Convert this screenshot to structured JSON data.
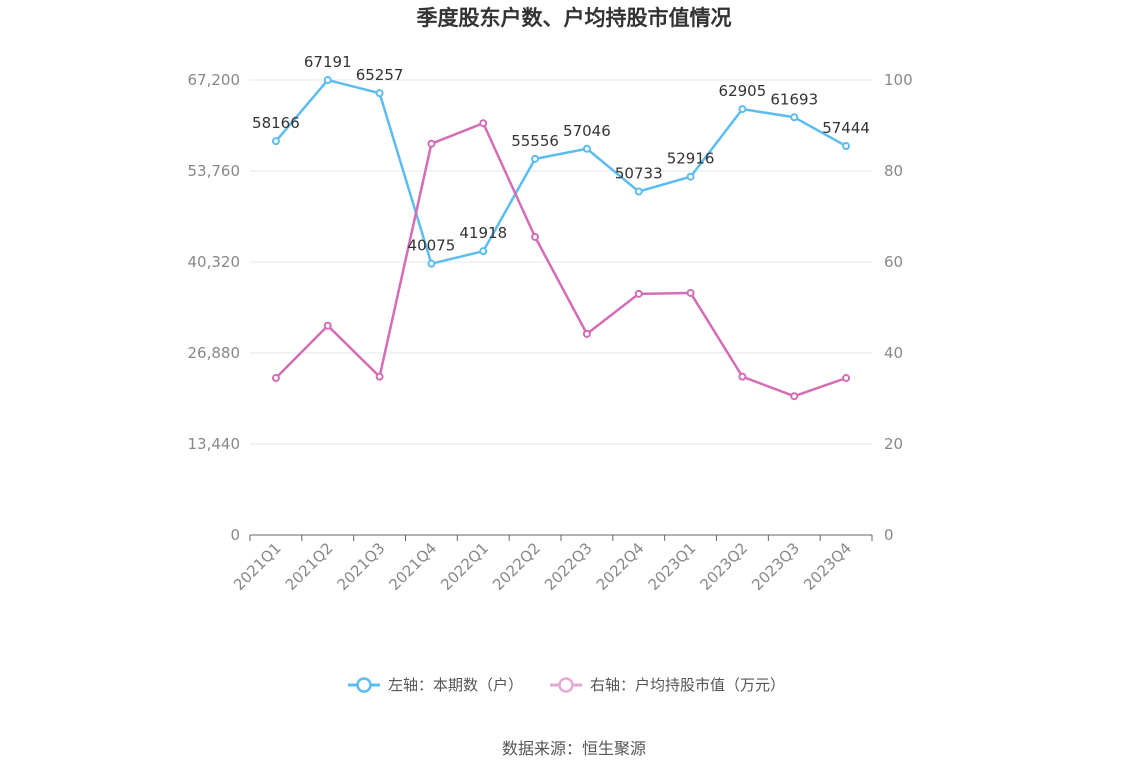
{
  "colors": {
    "left": "#5bbcf0",
    "right": "#d46db6",
    "grid": "#e3e8ef",
    "axis": "#666666"
  },
  "chart_data": {
    "type": "line",
    "title": "季度股东户数、户均持股市值情况",
    "categories": [
      "2021Q1",
      "2021Q2",
      "2021Q3",
      "2021Q4",
      "2022Q1",
      "2022Q2",
      "2022Q3",
      "2022Q4",
      "2023Q1",
      "2023Q2",
      "2023Q3",
      "2023Q4"
    ],
    "left_axis": {
      "ylim": [
        0,
        67200
      ],
      "ticks": [
        0,
        13440,
        26880,
        40320,
        53760,
        67200
      ],
      "tick_labels": [
        "0",
        "13,440",
        "26,880",
        "40,320",
        "53,760",
        "67,200"
      ]
    },
    "right_axis": {
      "ylim": [
        0,
        100
      ],
      "ticks": [
        0,
        20,
        40,
        60,
        80,
        100
      ],
      "tick_labels": [
        "0",
        "20",
        "40",
        "60",
        "80",
        "100"
      ]
    },
    "series": [
      {
        "name": "左轴：本期数（户）",
        "axis": "left",
        "values": [
          58166,
          67191,
          65257,
          40075,
          41918,
          55556,
          57046,
          50733,
          52916,
          62905,
          61693,
          57444
        ],
        "labels": [
          "58166",
          "67191",
          "65257",
          "40075",
          "41918",
          "55556",
          "57046",
          "50733",
          "52916",
          "62905",
          "61693",
          "57444"
        ]
      },
      {
        "name": "右轴：户均持股市值（万元）",
        "axis": "right",
        "values": [
          34.5,
          46,
          34.8,
          86,
          90.5,
          65.5,
          44.2,
          53,
          53.2,
          34.8,
          30.5,
          34.5
        ]
      }
    ],
    "legend": {
      "position": "bottom"
    },
    "grid": true
  },
  "source_text": "数据来源：恒生聚源"
}
